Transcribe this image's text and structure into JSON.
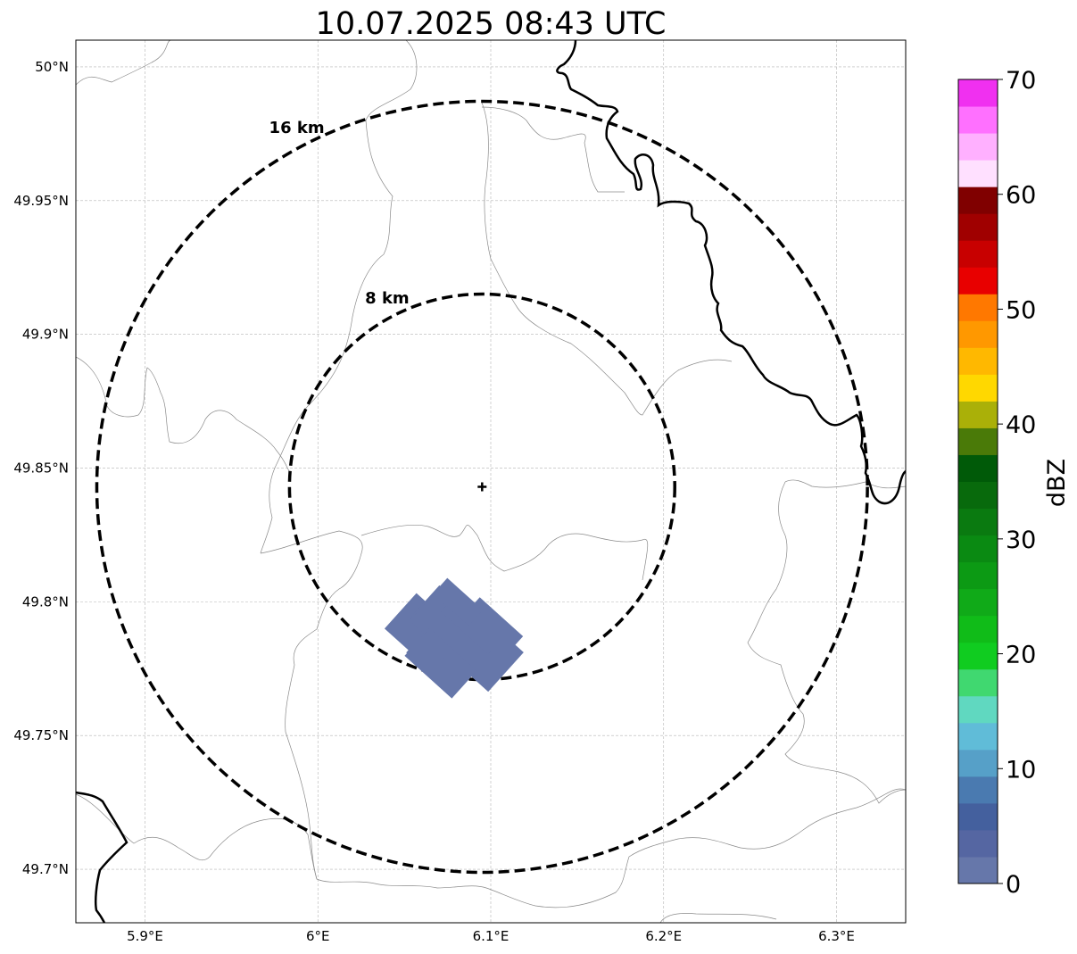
{
  "title": "10.07.2025 08:43 UTC",
  "map": {
    "lon_range": [
      5.86,
      6.34
    ],
    "lat_range": [
      49.68,
      50.01
    ],
    "lon_ticks": [
      {
        "value": 5.9,
        "label": "5.9°E"
      },
      {
        "value": 6.0,
        "label": "6°E"
      },
      {
        "value": 6.1,
        "label": "6.1°E"
      },
      {
        "value": 6.2,
        "label": "6.2°E"
      },
      {
        "value": 6.3,
        "label": "6.3°E"
      }
    ],
    "lat_ticks": [
      {
        "value": 50.0,
        "label": "50°N"
      },
      {
        "value": 49.95,
        "label": "49.95°N"
      },
      {
        "value": 49.9,
        "label": "49.9°N"
      },
      {
        "value": 49.85,
        "label": "49.85°N"
      },
      {
        "value": 49.8,
        "label": "49.8°N"
      },
      {
        "value": 49.75,
        "label": "49.75°N"
      },
      {
        "value": 49.7,
        "label": "49.7°N"
      }
    ],
    "radar_site": {
      "lon": 6.095,
      "lat": 49.843
    },
    "range_rings": [
      {
        "label": "8 km",
        "radius_km": 8
      },
      {
        "label": "16 km",
        "radius_km": 16
      }
    ],
    "grid": true,
    "echo_color": "#6677aa",
    "echo_cells": [
      {
        "lon": 6.066,
        "lat": 49.786,
        "len_km": 1.6,
        "wid_km": 0.9
      },
      {
        "lon": 6.078,
        "lat": 49.791,
        "len_km": 1.4,
        "wid_km": 0.8
      },
      {
        "lon": 6.086,
        "lat": 49.787,
        "len_km": 2.0,
        "wid_km": 1.0
      },
      {
        "lon": 6.09,
        "lat": 49.792,
        "len_km": 1.2,
        "wid_km": 0.5
      },
      {
        "lon": 6.1,
        "lat": 49.79,
        "len_km": 1.1,
        "wid_km": 0.6
      },
      {
        "lon": 6.081,
        "lat": 49.8,
        "len_km": 0.9,
        "wid_km": 0.4
      },
      {
        "lon": 6.071,
        "lat": 49.777,
        "len_km": 1.2,
        "wid_km": 0.7
      },
      {
        "lon": 6.062,
        "lat": 49.78,
        "len_km": 0.6,
        "wid_km": 0.4
      }
    ]
  },
  "colorbar": {
    "label": "dBZ",
    "min": 0,
    "max": 70,
    "ticks": [
      0,
      10,
      20,
      30,
      40,
      50,
      60,
      70
    ],
    "colors": [
      "#6677aa",
      "#5566a2",
      "#44609e",
      "#4a7ab0",
      "#56a0c8",
      "#60bcd8",
      "#60d8c0",
      "#40d870",
      "#10cc20",
      "#10bc18",
      "#10aa18",
      "#0c9a14",
      "#0a8a12",
      "#0a7a10",
      "#086a0c",
      "#005a08",
      "#4a7a08",
      "#aab008",
      "#ffd800",
      "#ffb800",
      "#ff9800",
      "#ff7800",
      "#e80000",
      "#c80000",
      "#a00000",
      "#800000",
      "#ffe0ff",
      "#ffb0ff",
      "#ff70ff",
      "#f030f0"
    ]
  }
}
